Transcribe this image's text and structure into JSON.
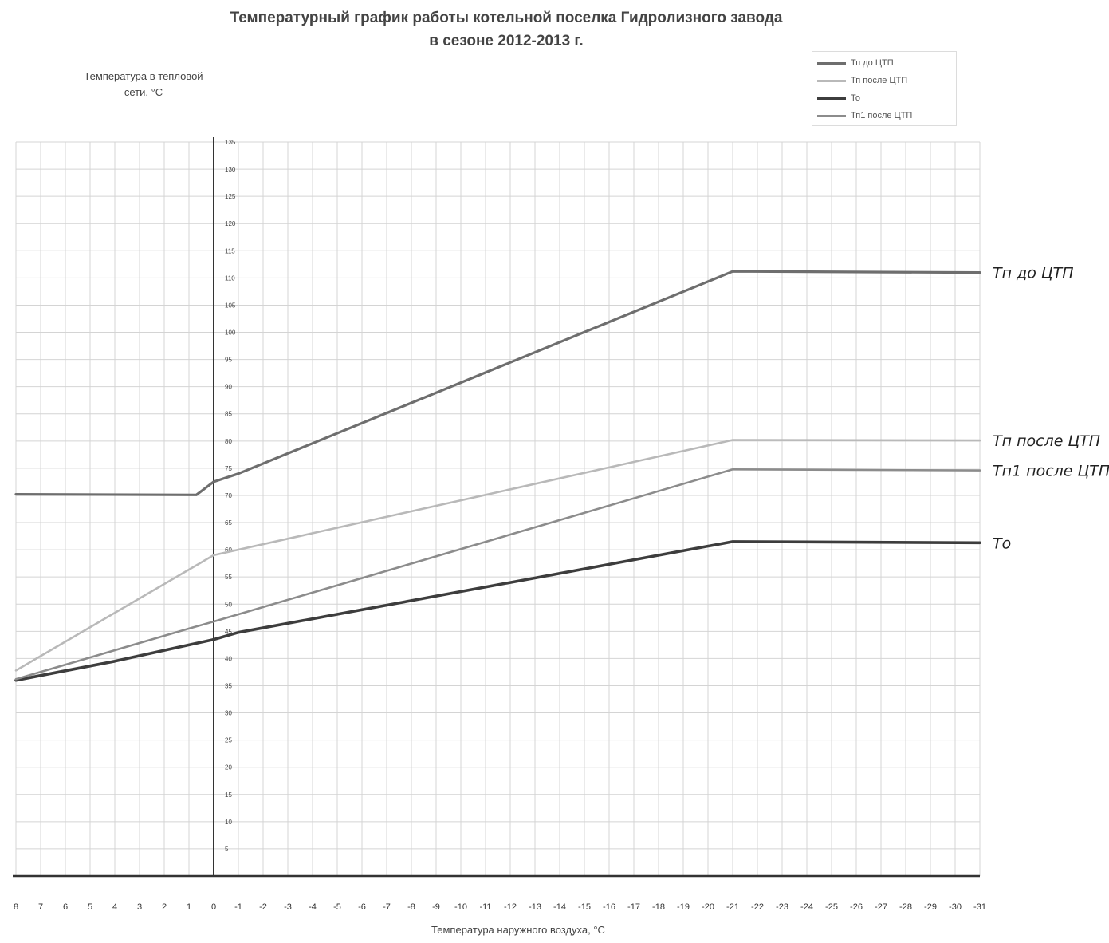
{
  "chart_data": {
    "type": "line",
    "title_line1": "Температурный график работы котельной поселка Гидролизного завода",
    "title_line2": "в сезоне 2012-2013 г.",
    "ylabel_line1": "Температура в тепловой",
    "ylabel_line2": "сети, °С",
    "xlabel": "Температура наружного воздуха, °С",
    "xlim": [
      8,
      -31
    ],
    "ylim": [
      0,
      135
    ],
    "x_ticks": [
      8,
      7,
      6,
      5,
      4,
      3,
      2,
      1,
      0,
      -1,
      -2,
      -3,
      -4,
      -5,
      -6,
      -7,
      -8,
      -9,
      -10,
      -11,
      -12,
      -13,
      -14,
      -15,
      -16,
      -17,
      -18,
      -19,
      -20,
      -21,
      -22,
      -23,
      -24,
      -25,
      -26,
      -27,
      -28,
      -29,
      -30,
      -31
    ],
    "y_ticks": [
      5,
      10,
      15,
      20,
      25,
      30,
      35,
      40,
      45,
      50,
      55,
      60,
      65,
      70,
      75,
      80,
      85,
      90,
      95,
      100,
      105,
      110,
      115,
      120,
      125,
      130,
      135
    ],
    "grid": true,
    "legend_position": "top-right",
    "series": [
      {
        "name": "Тп до ЦТП",
        "color": "#6e6e6e",
        "width": 3.2,
        "points": [
          [
            8,
            70.2
          ],
          [
            0.7,
            70.1
          ],
          [
            0,
            72.5
          ],
          [
            -1,
            74
          ],
          [
            -21,
            111.2
          ],
          [
            -31,
            111
          ]
        ],
        "annotation": "Тп до ЦТП"
      },
      {
        "name": "Тп после ЦТП",
        "color": "#b9b9b9",
        "width": 2.6,
        "points": [
          [
            8,
            37.8
          ],
          [
            0,
            59
          ],
          [
            -21,
            80.2
          ],
          [
            -31,
            80.1
          ]
        ],
        "annotation": "Тп после ЦТП"
      },
      {
        "name": "То",
        "color": "#3d3d3d",
        "width": 3.6,
        "points": [
          [
            8,
            36
          ],
          [
            4,
            39.5
          ],
          [
            1,
            42.5
          ],
          [
            0,
            43.5
          ],
          [
            -1,
            44.8
          ],
          [
            -21,
            61.5
          ],
          [
            -31,
            61.3
          ]
        ],
        "annotation": "То"
      },
      {
        "name": "Тп1  после ЦТП",
        "color": "#8c8c8c",
        "width": 2.6,
        "points": [
          [
            8,
            36.2
          ],
          [
            1,
            45.5
          ],
          [
            0,
            46.8
          ],
          [
            -21,
            74.8
          ],
          [
            -31,
            74.6
          ]
        ],
        "annotation": "Тп1 после ЦТП"
      }
    ]
  }
}
